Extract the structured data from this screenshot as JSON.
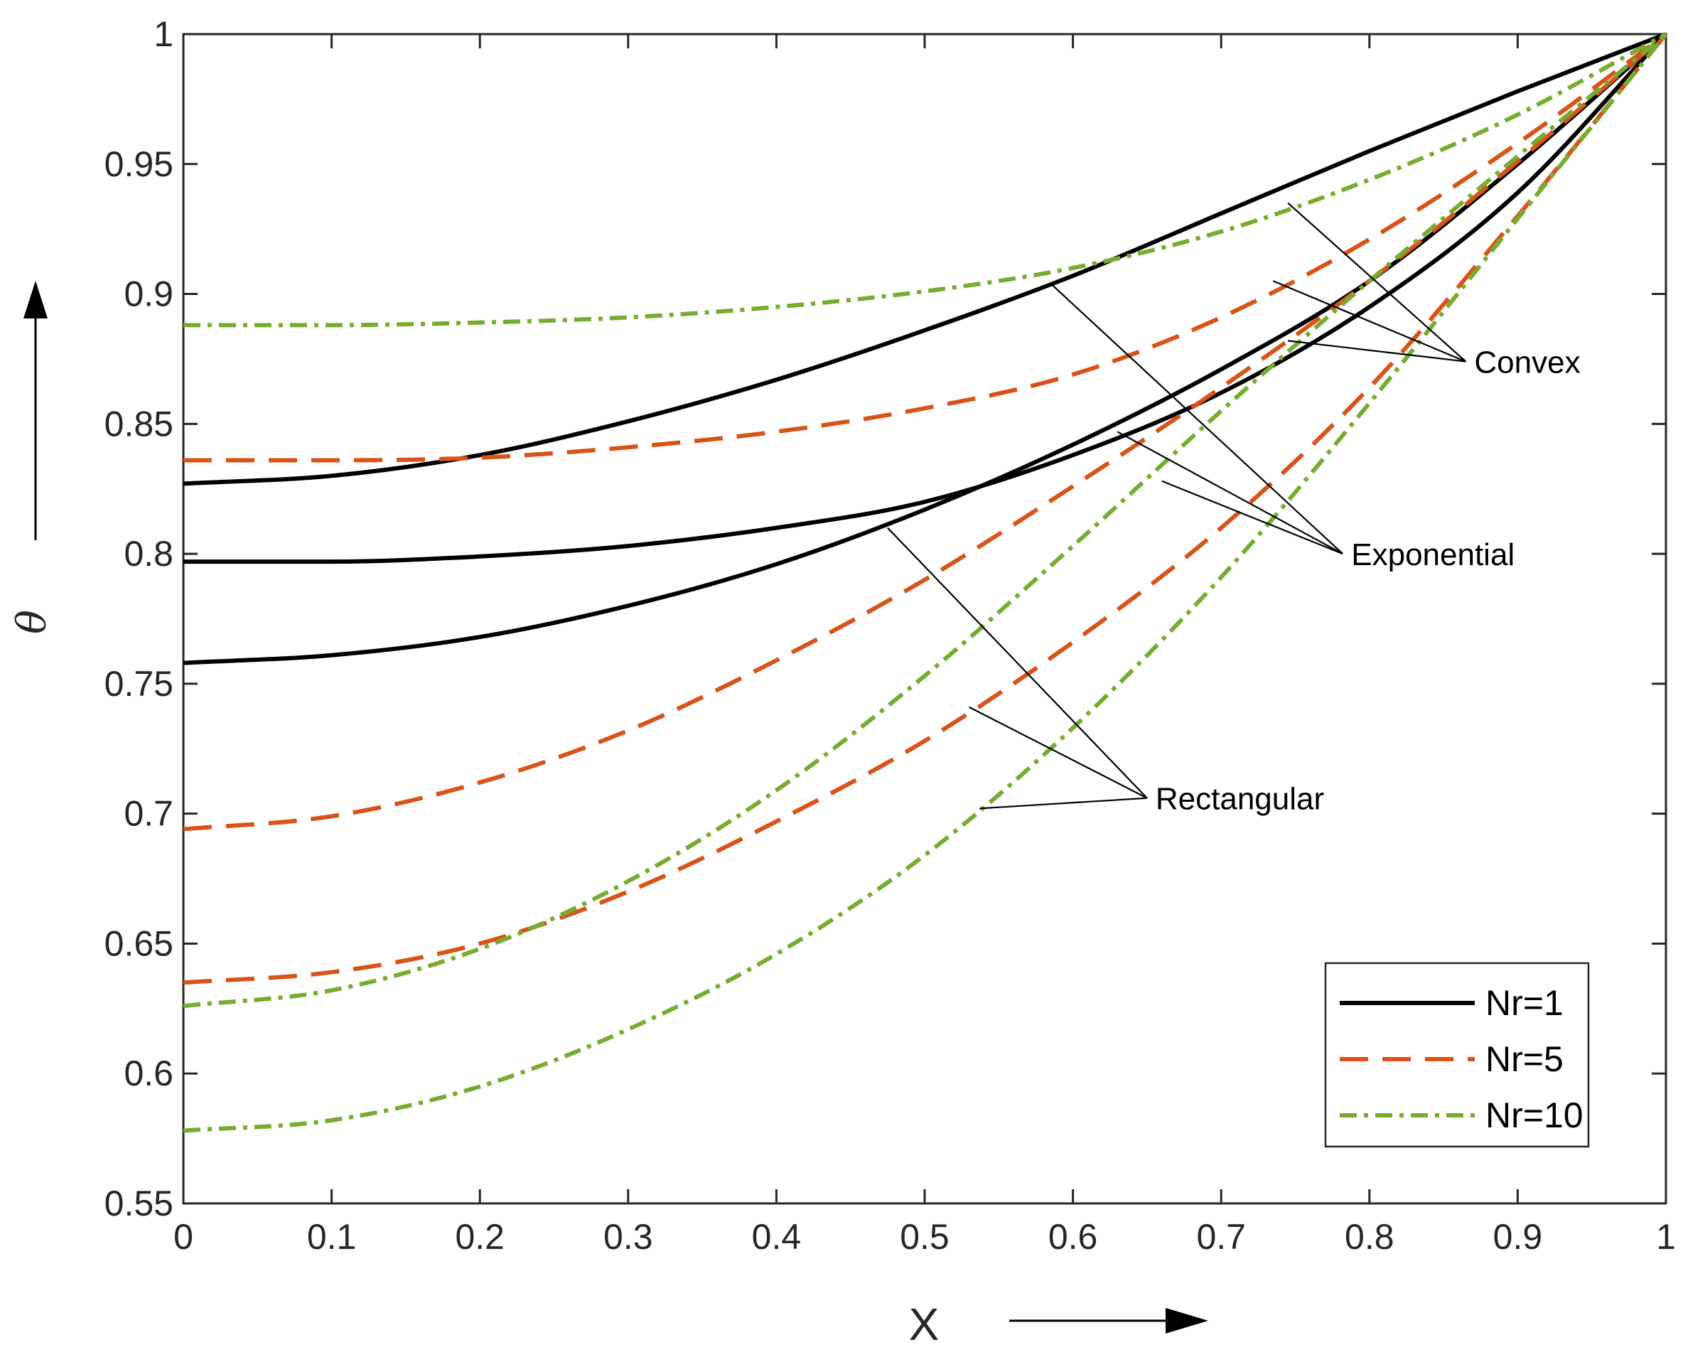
{
  "chart_data": {
    "type": "line",
    "title": "",
    "xlabel": "X",
    "ylabel": "θ",
    "xlim": [
      0,
      1
    ],
    "ylim": [
      0.55,
      1
    ],
    "grid": false,
    "legend_position": "bottom-right",
    "x_ticks": [
      "0",
      "0.1",
      "0.2",
      "0.3",
      "0.4",
      "0.5",
      "0.6",
      "0.7",
      "0.8",
      "0.9",
      "1"
    ],
    "y_ticks": [
      "0.55",
      "0.6",
      "0.65",
      "0.7",
      "0.75",
      "0.8",
      "0.85",
      "0.9",
      "0.95",
      "1"
    ],
    "x_tick_values": [
      0,
      0.1,
      0.2,
      0.3,
      0.4,
      0.5,
      0.6,
      0.7,
      0.8,
      0.9,
      1
    ],
    "y_tick_values": [
      0.55,
      0.6,
      0.65,
      0.7,
      0.75,
      0.8,
      0.85,
      0.9,
      0.95,
      1
    ],
    "legend": [
      {
        "label": "Nr=1",
        "style": "solid",
        "color": "#000000"
      },
      {
        "label": "Nr=5",
        "style": "dashed",
        "color": "#D95319"
      },
      {
        "label": "Nr=10",
        "style": "dashdot",
        "color": "#77AC30"
      }
    ],
    "series": [
      {
        "name": "Nr=1 Convex",
        "nr": 1,
        "profile": "Convex",
        "x": [
          0,
          0.1,
          0.2,
          0.3,
          0.4,
          0.5,
          0.6,
          0.7,
          0.8,
          0.9,
          1
        ],
        "y": [
          0.827,
          0.83,
          0.838,
          0.851,
          0.867,
          0.886,
          0.907,
          0.931,
          0.955,
          0.978,
          1.0
        ]
      },
      {
        "name": "Nr=1 Exponential",
        "nr": 1,
        "profile": "Exponential",
        "x": [
          0,
          0.1,
          0.2,
          0.3,
          0.4,
          0.5,
          0.6,
          0.7,
          0.8,
          0.9,
          1
        ],
        "y": [
          0.797,
          0.797,
          0.799,
          0.803,
          0.81,
          0.82,
          0.838,
          0.862,
          0.895,
          0.939,
          1.0
        ]
      },
      {
        "name": "Nr=1 Rectangular",
        "nr": 1,
        "profile": "Rectangular",
        "x": [
          0,
          0.1,
          0.2,
          0.3,
          0.4,
          0.5,
          0.6,
          0.7,
          0.8,
          0.9,
          1
        ],
        "y": [
          0.758,
          0.761,
          0.768,
          0.78,
          0.796,
          0.817,
          0.842,
          0.871,
          0.905,
          0.95,
          1.0
        ]
      },
      {
        "name": "Nr=5 Convex",
        "nr": 5,
        "profile": "Convex",
        "x": [
          0,
          0.1,
          0.2,
          0.3,
          0.4,
          0.5,
          0.6,
          0.7,
          0.8,
          0.9,
          1
        ],
        "y": [
          0.836,
          0.836,
          0.837,
          0.841,
          0.847,
          0.856,
          0.869,
          0.891,
          0.921,
          0.958,
          1.0
        ]
      },
      {
        "name": "Nr=5 Exponential",
        "nr": 5,
        "profile": "Exponential",
        "x": [
          0,
          0.1,
          0.2,
          0.3,
          0.4,
          0.5,
          0.6,
          0.7,
          0.8,
          0.9,
          1
        ],
        "y": [
          0.694,
          0.699,
          0.712,
          0.732,
          0.759,
          0.79,
          0.826,
          0.864,
          0.905,
          0.951,
          1.0
        ]
      },
      {
        "name": "Nr=5 Rectangular",
        "nr": 5,
        "profile": "Rectangular",
        "x": [
          0,
          0.1,
          0.2,
          0.3,
          0.4,
          0.5,
          0.6,
          0.7,
          0.8,
          0.9,
          1
        ],
        "y": [
          0.635,
          0.639,
          0.65,
          0.67,
          0.697,
          0.728,
          0.766,
          0.81,
          0.864,
          0.93,
          1.0
        ]
      },
      {
        "name": "Nr=10 Convex",
        "nr": 10,
        "profile": "Convex",
        "x": [
          0,
          0.1,
          0.2,
          0.3,
          0.4,
          0.5,
          0.6,
          0.7,
          0.8,
          0.9,
          1
        ],
        "y": [
          0.888,
          0.888,
          0.889,
          0.891,
          0.895,
          0.901,
          0.91,
          0.924,
          0.944,
          0.969,
          1.0
        ]
      },
      {
        "name": "Nr=10 Exponential",
        "nr": 10,
        "profile": "Exponential",
        "x": [
          0,
          0.1,
          0.2,
          0.3,
          0.4,
          0.5,
          0.6,
          0.7,
          0.8,
          0.9,
          1
        ],
        "y": [
          0.626,
          0.632,
          0.648,
          0.674,
          0.709,
          0.753,
          0.803,
          0.855,
          0.905,
          0.953,
          1.0
        ]
      },
      {
        "name": "Nr=10 Rectangular",
        "nr": 10,
        "profile": "Rectangular",
        "x": [
          0,
          0.1,
          0.2,
          0.3,
          0.4,
          0.5,
          0.6,
          0.7,
          0.8,
          0.9,
          1
        ],
        "y": [
          0.578,
          0.582,
          0.595,
          0.617,
          0.646,
          0.684,
          0.733,
          0.791,
          0.858,
          0.929,
          1.0
        ]
      }
    ],
    "annotations": [
      {
        "text": "Convex",
        "anchor": [
          0.865,
          0.874
        ]
      },
      {
        "text": "Exponential",
        "anchor": [
          0.782,
          0.8
        ]
      },
      {
        "text": "Rectangular",
        "anchor": [
          0.65,
          0.706
        ]
      }
    ]
  }
}
